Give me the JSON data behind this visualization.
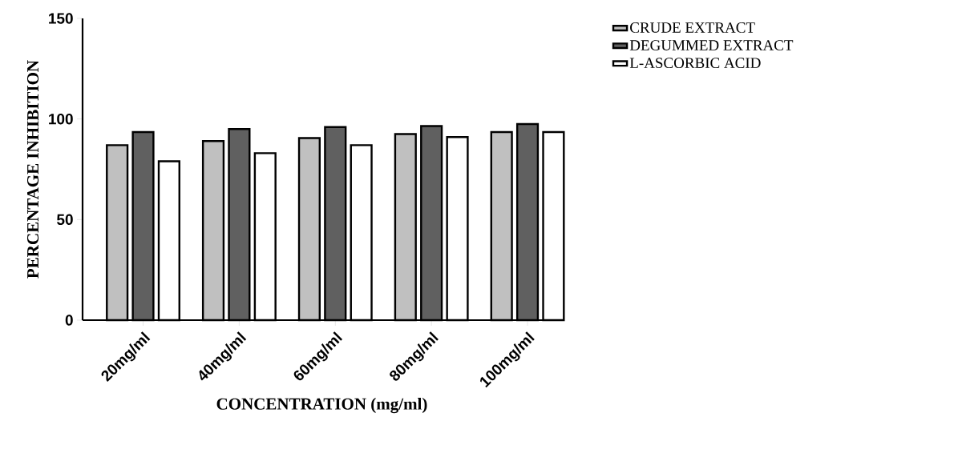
{
  "chart_data": {
    "type": "bar",
    "xlabel": "CONCENTRATION (mg/ml)",
    "ylabel": "PERCENTAGE INHIBITION",
    "categories": [
      "20mg/ml",
      "40mg/ml",
      "60mg/ml",
      "80mg/ml",
      "100mg/ml"
    ],
    "series": [
      {
        "name": "CRUDE EXTRACT",
        "color": "#c0c0c0",
        "values": [
          87,
          89,
          90.5,
          92.5,
          93.5
        ]
      },
      {
        "name": "DEGUMMED EXTRACT",
        "color": "#606060",
        "values": [
          93.5,
          95,
          96,
          96.5,
          97.5
        ]
      },
      {
        "name": "L-ASCORBIC ACID",
        "color": "#ffffff",
        "values": [
          79,
          83,
          87,
          91,
          93.5
        ]
      }
    ],
    "ylim": [
      0,
      150
    ],
    "yticks": [
      0,
      50,
      100,
      150
    ],
    "grid": false,
    "legend": "top right"
  }
}
